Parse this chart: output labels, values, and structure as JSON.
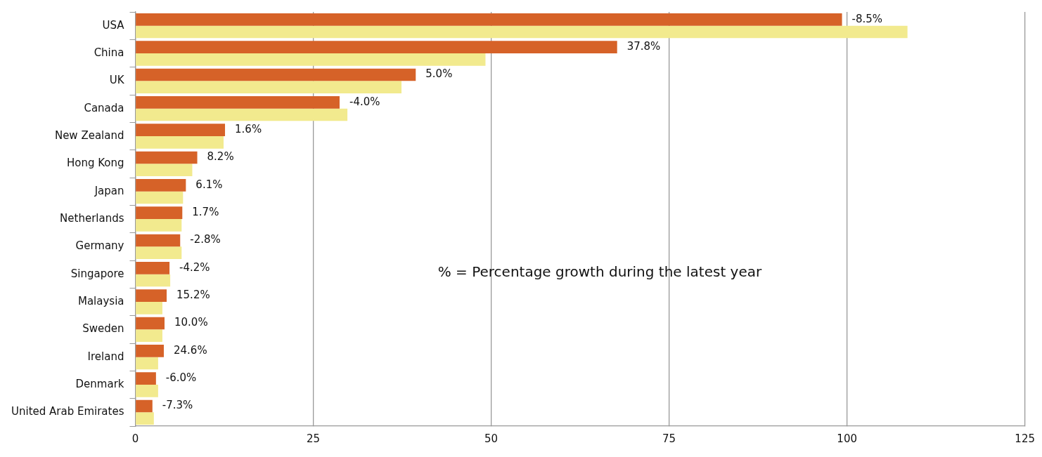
{
  "chart_data": {
    "type": "bar",
    "orientation": "horizontal",
    "categories": [
      "USA",
      "China",
      "UK",
      "Canada",
      "New Zealand",
      "Hong Kong",
      "Japan",
      "Netherlands",
      "Germany",
      "Singapore",
      "Malaysia",
      "Sweden",
      "Ireland",
      "Denmark",
      "United Arab Emirates"
    ],
    "series": [
      {
        "color": "#d66228",
        "values": [
          99.3,
          67.7,
          39.4,
          28.7,
          12.6,
          8.7,
          7.1,
          6.6,
          6.3,
          4.8,
          4.4,
          4.1,
          4.0,
          2.9,
          2.4
        ]
      },
      {
        "color": "#f2ea8e",
        "values": [
          108.5,
          49.2,
          37.4,
          29.8,
          12.4,
          8.0,
          6.7,
          6.5,
          6.5,
          4.9,
          3.8,
          3.8,
          3.2,
          3.2,
          2.6
        ]
      }
    ],
    "xlim": [
      0,
      125
    ],
    "xticks": [
      0,
      25,
      50,
      75,
      100,
      125
    ],
    "grid": "x",
    "legend": false,
    "annotations": [
      "% = Percentage growth during the latest year",
      {
        "text": "-8.5%",
        "x": 99.3,
        "y": "USA"
      },
      {
        "text": "37.8%",
        "x": 67.7,
        "y": "China"
      },
      {
        "text": "5.0%",
        "x": 39.4,
        "y": "UK"
      },
      {
        "text": "-4.0%",
        "x": 28.7,
        "y": "Canada"
      },
      {
        "text": "1.6%",
        "x": 12.6,
        "y": "New Zealand"
      },
      {
        "text": "8.2%",
        "x": 8.7,
        "y": "Hong Kong"
      },
      {
        "text": "6.1%",
        "x": 7.1,
        "y": "Japan"
      },
      {
        "text": "1.7%",
        "x": 6.6,
        "y": "Netherlands"
      },
      {
        "text": "-2.8%",
        "x": 6.3,
        "y": "Germany"
      },
      {
        "text": "-4.2%",
        "x": 4.8,
        "y": "Singapore"
      },
      {
        "text": "15.2%",
        "x": 4.4,
        "y": "Malaysia"
      },
      {
        "text": "10.0%",
        "x": 4.1,
        "y": "Sweden"
      },
      {
        "text": "24.6%",
        "x": 4.0,
        "y": "Ireland"
      },
      {
        "text": "-6.0%",
        "x": 2.9,
        "y": "Denmark"
      },
      {
        "text": "-7.3%",
        "x": 2.4,
        "y": "United Arab Emirates"
      }
    ]
  }
}
